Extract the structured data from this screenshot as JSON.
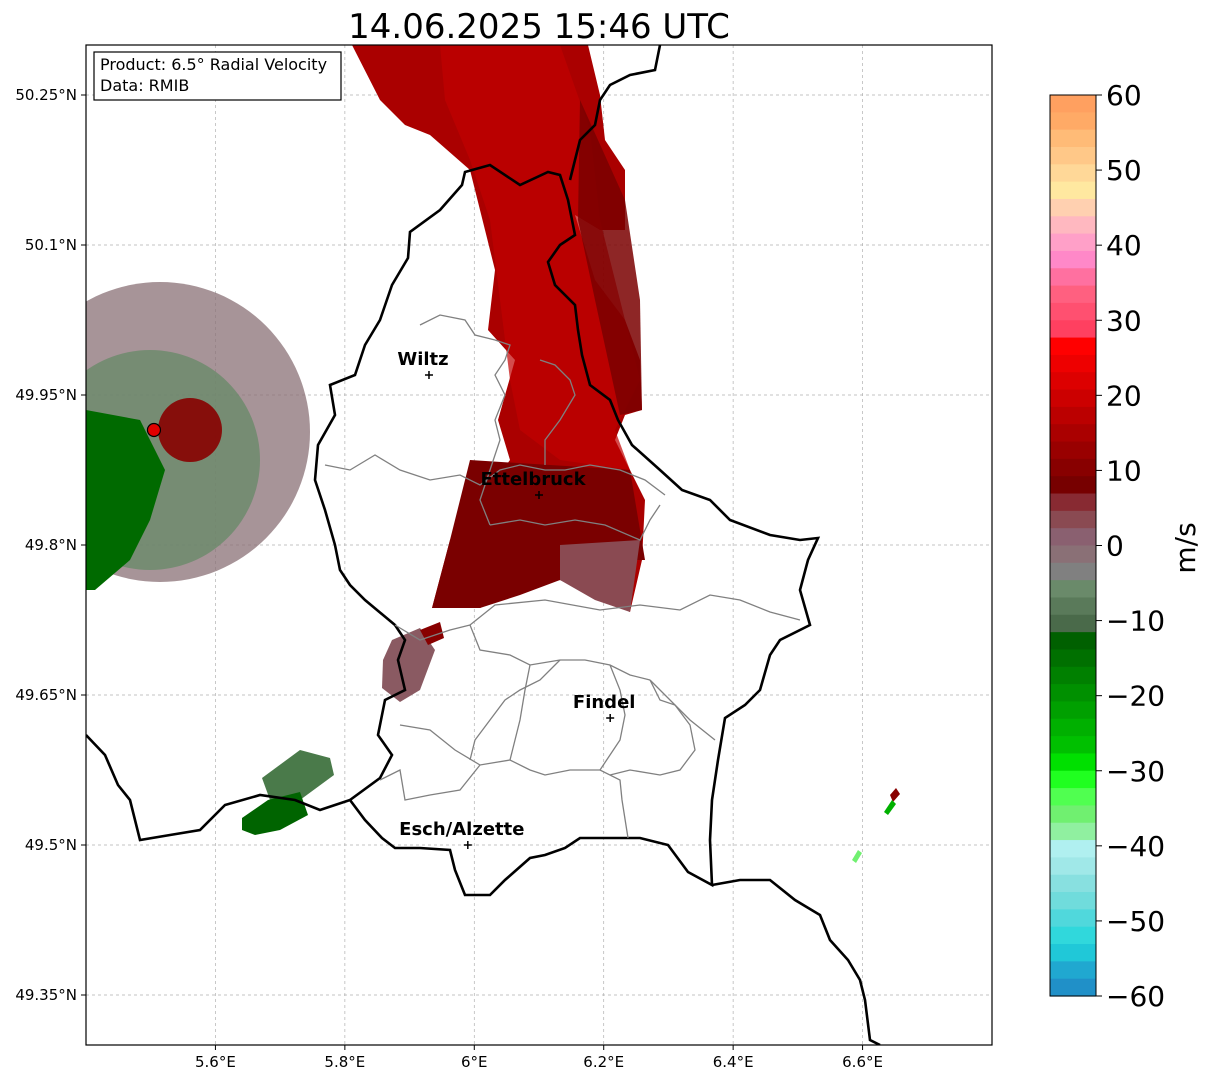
{
  "title": "14.06.2025 15:46 UTC",
  "info_box": {
    "line1": "Product: 6.5° Radial Velocity",
    "line2": "Data: RMIB"
  },
  "map": {
    "lon_range": [
      5.4,
      6.8
    ],
    "lat_range": [
      49.3,
      50.3
    ],
    "x_ticks": [
      {
        "value": 5.6,
        "label": "5.6°E"
      },
      {
        "value": 5.8,
        "label": "5.8°E"
      },
      {
        "value": 6.0,
        "label": "6°E"
      },
      {
        "value": 6.2,
        "label": "6.2°E"
      },
      {
        "value": 6.4,
        "label": "6.4°E"
      },
      {
        "value": 6.6,
        "label": "6.6°E"
      }
    ],
    "y_ticks": [
      {
        "value": 50.25,
        "label": "50.25°N"
      },
      {
        "value": 50.1,
        "label": "50.1°N"
      },
      {
        "value": 49.95,
        "label": "49.95°N"
      },
      {
        "value": 49.8,
        "label": "49.8°N"
      },
      {
        "value": 49.65,
        "label": "49.65°N"
      },
      {
        "value": 49.5,
        "label": "49.5°N"
      },
      {
        "value": 49.35,
        "label": "49.35°N"
      }
    ],
    "cities": [
      {
        "name": "Wiltz",
        "lon": 5.93,
        "lat": 49.97
      },
      {
        "name": "Ettelbruck",
        "lon": 6.1,
        "lat": 49.85
      },
      {
        "name": "Findel",
        "lon": 6.21,
        "lat": 49.627
      },
      {
        "name": "Esch/Alzette",
        "lon": 5.99,
        "lat": 49.5
      }
    ],
    "radar_site": {
      "lon": 5.505,
      "lat": 49.915,
      "color": "#e00000"
    }
  },
  "colorbar": {
    "label": "m/s",
    "min": -60,
    "max": 60,
    "tick_values": [
      60,
      50,
      40,
      30,
      20,
      10,
      0,
      -10,
      -20,
      -30,
      -40,
      -50,
      -60
    ],
    "tick_labels": [
      "60",
      "50",
      "40",
      "30",
      "20",
      "10",
      "0",
      "−10",
      "−20",
      "−30",
      "−40",
      "−50",
      "−60"
    ],
    "colors_top_to_bottom": [
      "#ffa060",
      "#ffaa66",
      "#ffbb77",
      "#ffc888",
      "#ffd898",
      "#ffe8a0",
      "#ffd0b0",
      "#ffb8c0",
      "#ffa0c8",
      "#ff88c8",
      "#ff70a0",
      "#ff6080",
      "#ff5070",
      "#ff4060",
      "#ff0000",
      "#ee0000",
      "#dd0000",
      "#cc0000",
      "#bb0000",
      "#aa0000",
      "#990000",
      "#880000",
      "#770000",
      "#882a32",
      "#8a4a52",
      "#8a6070",
      "#8a7076",
      "#808080",
      "#6a8a6a",
      "#5a7a5a",
      "#4a6a4a",
      "#006000",
      "#007000",
      "#008000",
      "#009000",
      "#00a000",
      "#00b000",
      "#00c000",
      "#00e000",
      "#20ff20",
      "#50ff50",
      "#70f070",
      "#90f0a0",
      "#b0f0f0",
      "#a0e8e8",
      "#88e0e0",
      "#70dcdc",
      "#50d8dc",
      "#30d8dc",
      "#20c8d8",
      "#20a8d0",
      "#2090c8"
    ]
  }
}
